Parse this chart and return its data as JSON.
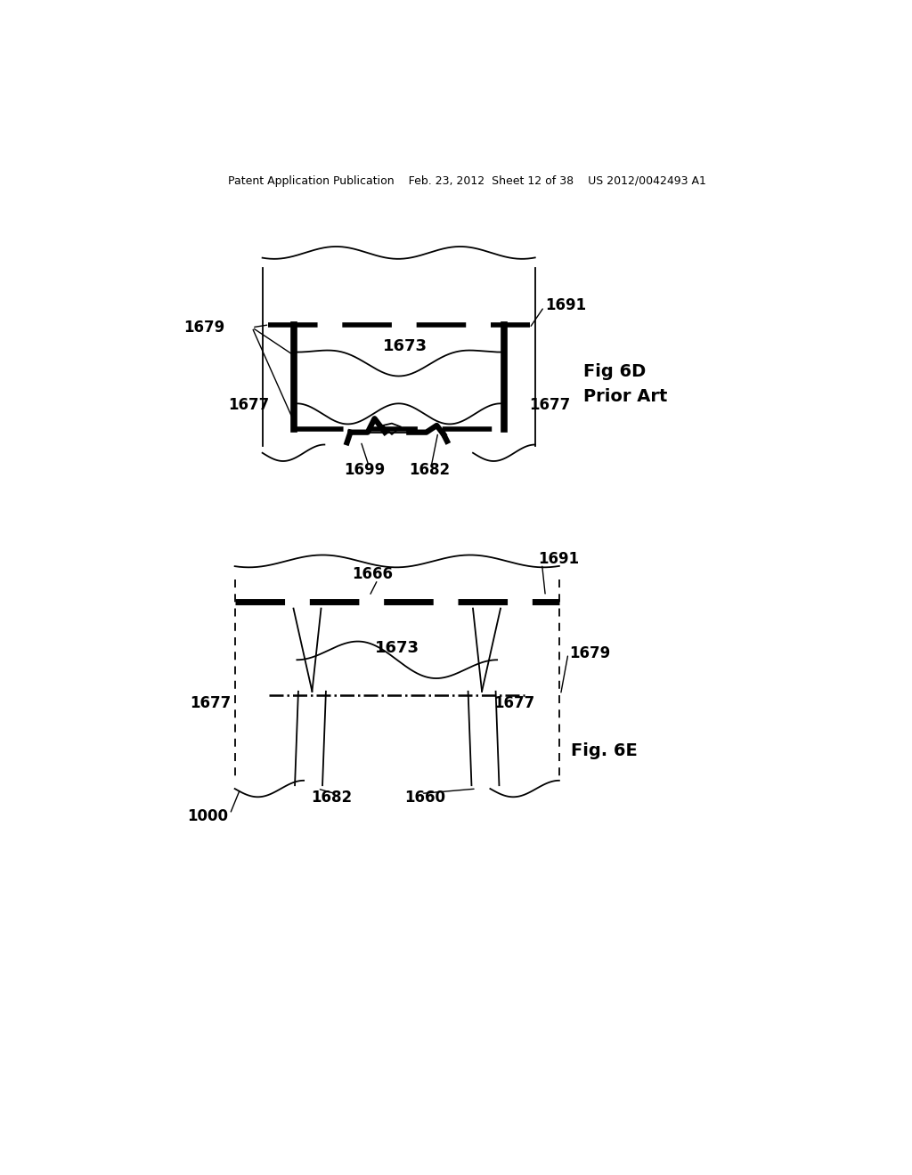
{
  "bg_color": "#ffffff",
  "header_text": "Patent Application Publication    Feb. 23, 2012  Sheet 12 of 38    US 2012/0042493 A1",
  "fig6d_label": "Fig 6D\nPrior Art",
  "fig6e_label": "Fig. 6E"
}
